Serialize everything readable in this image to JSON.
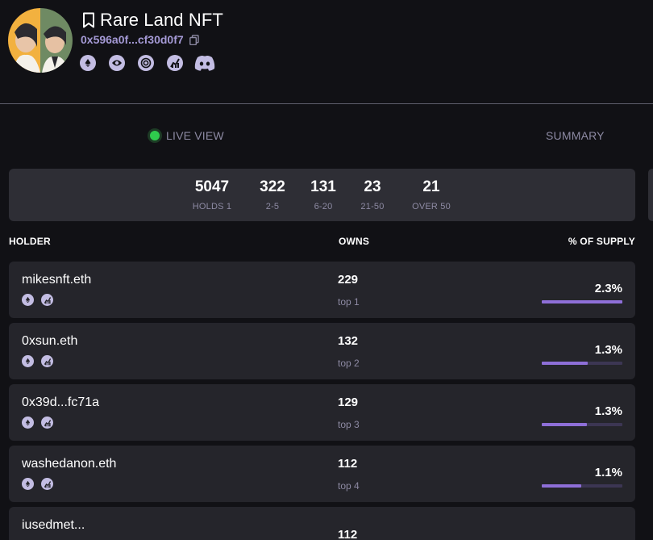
{
  "collection": {
    "name": "Rare Land NFT",
    "address": "0x596a0f...cf30d0f7",
    "icons": [
      "ethereum-icon",
      "eye-icon",
      "target-icon",
      "chart-icon",
      "discord-icon"
    ]
  },
  "tabs": {
    "live": "LIVE VIEW",
    "summary": "SUMMARY"
  },
  "distribution": [
    {
      "value": "5047",
      "label": "HOLDS 1"
    },
    {
      "value": "322",
      "label": "2-5"
    },
    {
      "value": "131",
      "label": "6-20"
    },
    {
      "value": "23",
      "label": "21-50"
    },
    {
      "value": "21",
      "label": "OVER 50"
    }
  ],
  "columns": {
    "holder": "HOLDER",
    "owns": "OWNS",
    "supply": "% OF SUPPLY"
  },
  "holders": [
    {
      "name": "mikesnft.eth",
      "owns": "229",
      "rank": "top 1",
      "pct": "2.3%",
      "fraction": 1.0
    },
    {
      "name": "0xsun.eth",
      "owns": "132",
      "rank": "top 2",
      "pct": "1.3%",
      "fraction": 0.57
    },
    {
      "name": "0x39d...fc71a",
      "owns": "129",
      "rank": "top 3",
      "pct": "1.3%",
      "fraction": 0.56
    },
    {
      "name": "washedanon.eth",
      "owns": "112",
      "rank": "top 4",
      "pct": "1.1%",
      "fraction": 0.49
    },
    {
      "name": "iusedmet...",
      "owns": "112",
      "rank": "",
      "pct": "",
      "fraction": 0
    }
  ],
  "colors": {
    "accent": "#8e6fd8",
    "live": "#2fcb4d",
    "address": "#a59ad6"
  }
}
